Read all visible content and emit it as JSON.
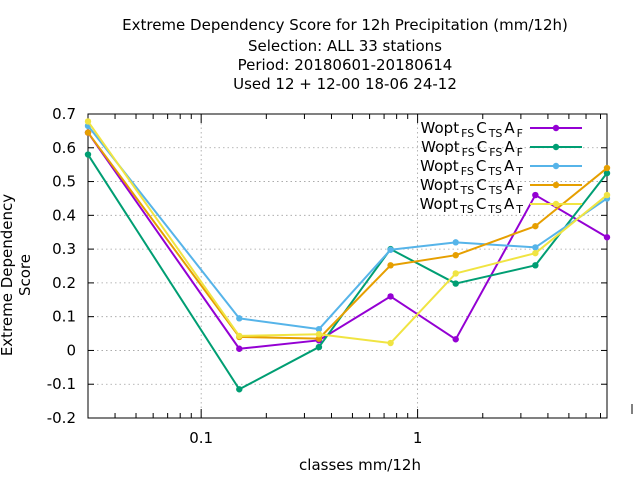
{
  "titles": [
    "Extreme Dependency Score  for 12h Precipitation (mm/12h)",
    "Selection: ALL     33 stations",
    "Period: 20180601-20180614",
    "Used  12 + 12-00 18-06 24-12"
  ],
  "chart_data": {
    "type": "line",
    "title": "Extreme Dependency Score  for 12h Precipitation (mm/12h)",
    "xlabel": "classes mm/12h",
    "ylabel": "Extreme Dependency Score",
    "x_scale": "log",
    "xlim": [
      0.03,
      7.5
    ],
    "ylim": [
      -0.2,
      0.7
    ],
    "x_ticks": [
      {
        "v": 0.1,
        "label": "0.1"
      },
      {
        "v": 1,
        "label": "1"
      }
    ],
    "y_ticks": [
      -0.2,
      -0.1,
      0,
      0.1,
      0.2,
      0.3,
      0.4,
      0.5,
      0.6,
      0.7
    ],
    "y_tick_labels": [
      "-0.2",
      "-0.1",
      "0",
      "0.1",
      "0.2",
      "0.3",
      "0.4",
      "0.5",
      "0.6",
      "0.7"
    ],
    "grid": true,
    "legend_position": "top-right",
    "x": [
      0.03,
      0.15,
      0.35,
      0.75,
      1.5,
      3.5,
      7.5
    ],
    "series": [
      {
        "name": "Wopt FS C TS A F",
        "label": {
          "base": "Wopt",
          "parts": [
            [
              "FS",
              "sub"
            ],
            [
              "C",
              ""
            ],
            [
              "TS",
              "sub"
            ],
            [
              "A",
              ""
            ],
            [
              "F",
              "sub"
            ]
          ]
        },
        "color": "#9400d3",
        "values": [
          0.645,
          0.005,
          0.03,
          0.16,
          0.033,
          0.46,
          0.335
        ]
      },
      {
        "name": "Wopt FS C FS A F",
        "label": {
          "base": "Wopt",
          "parts": [
            [
              "FS",
              "sub"
            ],
            [
              "C",
              ""
            ],
            [
              "FS",
              "sub"
            ],
            [
              "A",
              ""
            ],
            [
              "F",
              "sub"
            ]
          ]
        },
        "color": "#009e73",
        "values": [
          0.58,
          -0.115,
          0.01,
          0.3,
          0.198,
          0.252,
          0.525
        ]
      },
      {
        "name": "Wopt FS C TS A T",
        "label": {
          "base": "Wopt",
          "parts": [
            [
              "FS",
              "sub"
            ],
            [
              "C",
              ""
            ],
            [
              "TS",
              "sub"
            ],
            [
              "A",
              ""
            ],
            [
              "T",
              "sub"
            ]
          ]
        },
        "color": "#56b4e9",
        "values": [
          0.665,
          0.095,
          0.063,
          0.298,
          0.32,
          0.305,
          0.45
        ]
      },
      {
        "name": "Wopt TS C TS A F",
        "label": {
          "base": "Wopt",
          "parts": [
            [
              "TS",
              "sub"
            ],
            [
              "C",
              ""
            ],
            [
              "TS",
              "sub"
            ],
            [
              "A",
              ""
            ],
            [
              "F",
              "sub"
            ]
          ]
        },
        "color": "#e69f00",
        "values": [
          0.645,
          0.04,
          0.035,
          0.252,
          0.282,
          0.368,
          0.54
        ]
      },
      {
        "name": "Wopt TS C TS A T",
        "label": {
          "base": "Wopt",
          "parts": [
            [
              "TS",
              "sub"
            ],
            [
              "C",
              ""
            ],
            [
              "TS",
              "sub"
            ],
            [
              "A",
              ""
            ],
            [
              "T",
              "sub"
            ]
          ]
        },
        "color": "#f0e442",
        "values": [
          0.678,
          0.043,
          0.048,
          0.022,
          0.228,
          0.288,
          0.46
        ]
      }
    ]
  }
}
